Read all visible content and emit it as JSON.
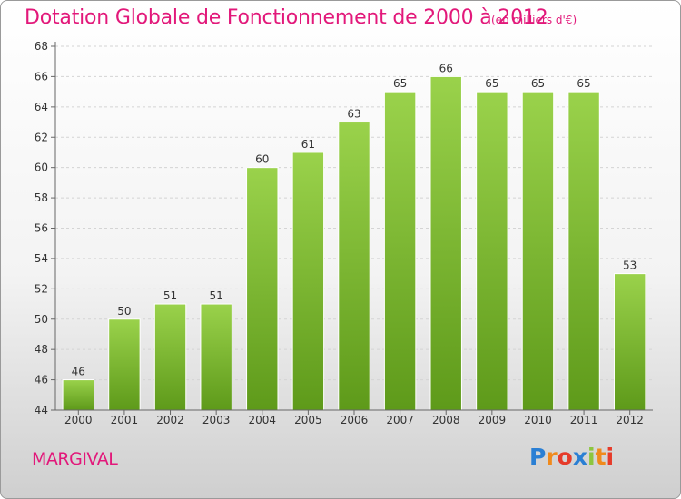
{
  "title": "Dotation Globale de Fonctionnement de 2000 à 2012",
  "unit": "(en milliers d'€)",
  "commune": "MARGIVAL",
  "logo": {
    "letters": [
      "P",
      "r",
      "o",
      "x",
      "i",
      "t",
      "i"
    ],
    "colors": [
      "#2a7fd4",
      "#f08a1c",
      "#e63b2a",
      "#2a7fd4",
      "#8dc63f",
      "#f08a1c",
      "#e63b2a"
    ]
  },
  "chart_data": {
    "type": "bar",
    "categories": [
      "2000",
      "2001",
      "2002",
      "2003",
      "2004",
      "2005",
      "2006",
      "2007",
      "2008",
      "2009",
      "2010",
      "2011",
      "2012"
    ],
    "values": [
      46,
      50,
      51,
      51,
      60,
      61,
      63,
      65,
      66,
      65,
      65,
      65,
      53
    ],
    "ylim": [
      44,
      68
    ],
    "yticks": [
      44,
      46,
      48,
      50,
      52,
      54,
      56,
      58,
      60,
      62,
      64,
      66,
      68
    ],
    "grid": true,
    "bar_color": "#8dc63f",
    "bar_color_dark": "#5e9a1a"
  }
}
